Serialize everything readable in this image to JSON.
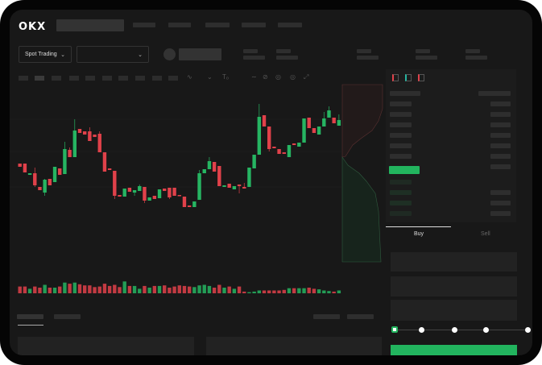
{
  "brand": {
    "logo": "OKX"
  },
  "toolbar": {
    "market_select": "Spot Trading",
    "pair_select": ""
  },
  "trade": {
    "buy_label": "Buy",
    "sell_label": "Sell",
    "slider_level_percent": 0,
    "slider_steps": [
      0,
      25,
      50,
      75,
      100
    ]
  },
  "colors": {
    "up": "#26b562",
    "down": "#e0414a",
    "button": "#22b45e",
    "background": "#181818"
  },
  "icons": [
    "chevron-down-icon",
    "line-icon",
    "brush-icon",
    "text-icon",
    "pencil-icon",
    "magnet-icon",
    "eye-icon",
    "fullscreen-icon",
    "book-both-icon",
    "book-bids-icon",
    "book-asks-icon"
  ],
  "chart_data": {
    "type": "candlestick",
    "title": "",
    "xlabel": "",
    "ylabel": "",
    "grid": true,
    "ohlc": [
      [
        67,
        67,
        63,
        63
      ],
      [
        67,
        67,
        56,
        56
      ],
      [
        53,
        55,
        53,
        55
      ],
      [
        55,
        62,
        38,
        40
      ],
      [
        38,
        38,
        34,
        34
      ],
      [
        31,
        48,
        27,
        47
      ],
      [
        48,
        48,
        40,
        40
      ],
      [
        44,
        63,
        44,
        63
      ],
      [
        61,
        61,
        53,
        53
      ],
      [
        54,
        94,
        54,
        85
      ],
      [
        84,
        87,
        75,
        75
      ],
      [
        75,
        122,
        75,
        108
      ],
      [
        110,
        110,
        105,
        105
      ],
      [
        107,
        107,
        103,
        103
      ],
      [
        107,
        112,
        95,
        95
      ],
      [
        103,
        103,
        100,
        100
      ],
      [
        104,
        107,
        81,
        81
      ],
      [
        81,
        81,
        57,
        57
      ],
      [
        61,
        61,
        59,
        59
      ],
      [
        58,
        58,
        23,
        27
      ],
      [
        28,
        28,
        26,
        26
      ],
      [
        26,
        36,
        26,
        36
      ],
      [
        37,
        37,
        32,
        32
      ],
      [
        31,
        34,
        27,
        34
      ],
      [
        33,
        41,
        33,
        39
      ],
      [
        38,
        38,
        18,
        21
      ],
      [
        21,
        25,
        21,
        25
      ],
      [
        27,
        27,
        23,
        23
      ],
      [
        24,
        35,
        24,
        35
      ],
      [
        36,
        36,
        33,
        33
      ],
      [
        37,
        37,
        23,
        25
      ],
      [
        37,
        37,
        27,
        27
      ],
      [
        28,
        28,
        27,
        27
      ],
      [
        26,
        26,
        13,
        13
      ],
      [
        15,
        15,
        13,
        13
      ],
      [
        13,
        20,
        13,
        20
      ],
      [
        22,
        59,
        22,
        55
      ],
      [
        55,
        60,
        55,
        60
      ],
      [
        60,
        75,
        60,
        70
      ],
      [
        69,
        69,
        57,
        57
      ],
      [
        64,
        64,
        39,
        39
      ],
      [
        38,
        40,
        38,
        40
      ],
      [
        42,
        42,
        37,
        37
      ],
      [
        35,
        39,
        35,
        39
      ],
      [
        41,
        41,
        30,
        39
      ],
      [
        38,
        43,
        36,
        36
      ],
      [
        38,
        62,
        38,
        62
      ],
      [
        61,
        78,
        61,
        78
      ],
      [
        78,
        141,
        78,
        125
      ],
      [
        127,
        127,
        113,
        113
      ],
      [
        113,
        113,
        82,
        85
      ],
      [
        88,
        88,
        86,
        86
      ],
      [
        85,
        85,
        79,
        79
      ],
      [
        81,
        81,
        79,
        79
      ],
      [
        75,
        90,
        75,
        90
      ],
      [
        92,
        92,
        90,
        90
      ],
      [
        88,
        93,
        88,
        93
      ],
      [
        93,
        123,
        93,
        123
      ],
      [
        124,
        124,
        111,
        111
      ],
      [
        111,
        111,
        105,
        105
      ],
      [
        103,
        113,
        103,
        113
      ],
      [
        113,
        131,
        113,
        123
      ],
      [
        124,
        138,
        124,
        133
      ],
      [
        124,
        124,
        117,
        117
      ],
      [
        114,
        128,
        114,
        121
      ]
    ],
    "volume": [
      12,
      12,
      8,
      12,
      10,
      15,
      10,
      10,
      12,
      19,
      17,
      19,
      16,
      14,
      14,
      11,
      12,
      17,
      13,
      15,
      11,
      21,
      13,
      13,
      8,
      13,
      10,
      13,
      13,
      14,
      10,
      12,
      14,
      13,
      12,
      11,
      14,
      15,
      13,
      10,
      15,
      10,
      12,
      8,
      12,
      3,
      2,
      3,
      5,
      5,
      5,
      5,
      5,
      6,
      9,
      9,
      9,
      9,
      10,
      8,
      7,
      5,
      4,
      3,
      5
    ]
  }
}
